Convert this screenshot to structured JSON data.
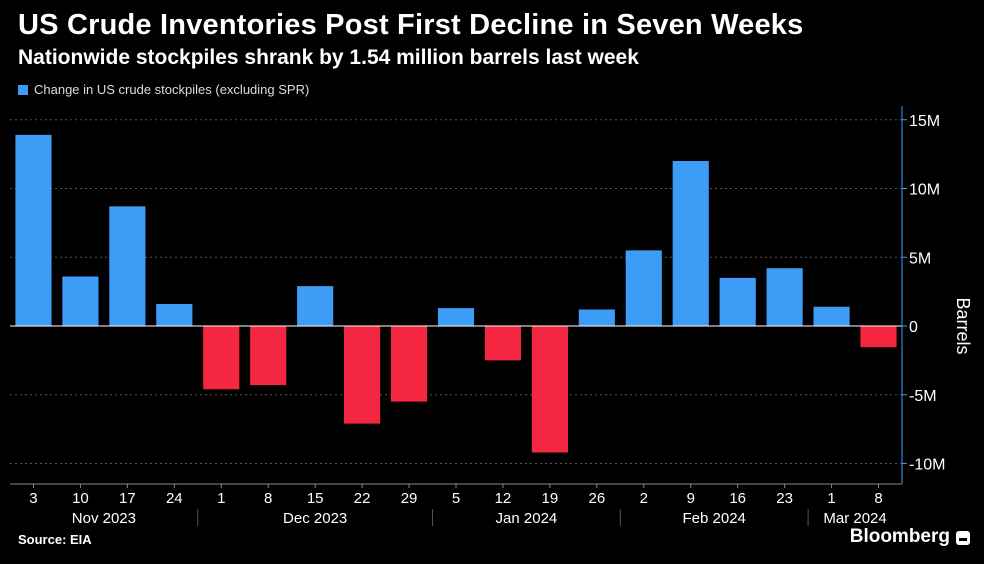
{
  "header": {
    "title": "US Crude Inventories Post First Decline in Seven Weeks",
    "subtitle": "Nationwide stockpiles shrank by 1.54 million barrels last week"
  },
  "legend": {
    "label": "Change in US crude stockpiles (excluding SPR)",
    "color": "#3d9df6"
  },
  "footer": {
    "source": "Source: EIA",
    "brand": "Bloomberg"
  },
  "colors": {
    "positive": "#3d9df6",
    "negative": "#f5263f",
    "axis": "#888888",
    "grid": "#555555",
    "axis_accent": "#3d9df6"
  },
  "chart_data": {
    "type": "bar",
    "categories": [
      "3",
      "10",
      "17",
      "24",
      "1",
      "8",
      "15",
      "22",
      "29",
      "5",
      "12",
      "19",
      "26",
      "2",
      "9",
      "16",
      "23",
      "1",
      "8"
    ],
    "month_labels": [
      {
        "label": "Nov 2023",
        "start": 0,
        "end": 3
      },
      {
        "label": "Dec 2023",
        "start": 4,
        "end": 8
      },
      {
        "label": "Jan 2024",
        "start": 9,
        "end": 12
      },
      {
        "label": "Feb 2024",
        "start": 13,
        "end": 16
      },
      {
        "label": "Mar 2024",
        "start": 17,
        "end": 18
      }
    ],
    "series": [
      {
        "values": [
          13.9,
          3.6,
          8.7,
          1.6,
          -4.6,
          -4.3,
          2.9,
          -7.1,
          -5.5,
          1.3,
          -2.5,
          -9.2,
          1.2,
          5.5,
          12.0,
          3.5,
          4.2,
          1.4,
          -1.54
        ]
      }
    ],
    "ylabel": "Barrels",
    "ylim": [
      -11.5,
      16
    ],
    "yticks": [
      15,
      10,
      5,
      0,
      -5,
      -10
    ],
    "ytick_labels": [
      "15M",
      "10M",
      "5M",
      "0",
      "-5M",
      "-10M"
    ],
    "y_axis_side": "right",
    "grid": true
  }
}
